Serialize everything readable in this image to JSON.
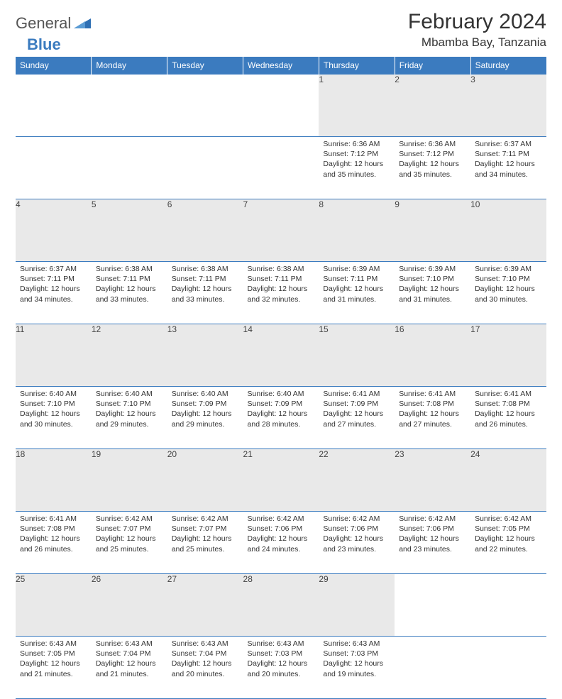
{
  "logo": {
    "part1": "General",
    "part2": "Blue"
  },
  "title": "February 2024",
  "location": "Mbamba Bay, Tanzania",
  "colors": {
    "header_bg": "#3b7bbf",
    "header_text": "#ffffff",
    "daynum_bg": "#e9e9e9",
    "border": "#3b7bbf",
    "body_text": "#333333"
  },
  "day_headers": [
    "Sunday",
    "Monday",
    "Tuesday",
    "Wednesday",
    "Thursday",
    "Friday",
    "Saturday"
  ],
  "weeks": [
    [
      null,
      null,
      null,
      null,
      {
        "n": "1",
        "sr": "6:36 AM",
        "ss": "7:12 PM",
        "dl": "12 hours and 35 minutes."
      },
      {
        "n": "2",
        "sr": "6:36 AM",
        "ss": "7:12 PM",
        "dl": "12 hours and 35 minutes."
      },
      {
        "n": "3",
        "sr": "6:37 AM",
        "ss": "7:11 PM",
        "dl": "12 hours and 34 minutes."
      }
    ],
    [
      {
        "n": "4",
        "sr": "6:37 AM",
        "ss": "7:11 PM",
        "dl": "12 hours and 34 minutes."
      },
      {
        "n": "5",
        "sr": "6:38 AM",
        "ss": "7:11 PM",
        "dl": "12 hours and 33 minutes."
      },
      {
        "n": "6",
        "sr": "6:38 AM",
        "ss": "7:11 PM",
        "dl": "12 hours and 33 minutes."
      },
      {
        "n": "7",
        "sr": "6:38 AM",
        "ss": "7:11 PM",
        "dl": "12 hours and 32 minutes."
      },
      {
        "n": "8",
        "sr": "6:39 AM",
        "ss": "7:11 PM",
        "dl": "12 hours and 31 minutes."
      },
      {
        "n": "9",
        "sr": "6:39 AM",
        "ss": "7:10 PM",
        "dl": "12 hours and 31 minutes."
      },
      {
        "n": "10",
        "sr": "6:39 AM",
        "ss": "7:10 PM",
        "dl": "12 hours and 30 minutes."
      }
    ],
    [
      {
        "n": "11",
        "sr": "6:40 AM",
        "ss": "7:10 PM",
        "dl": "12 hours and 30 minutes."
      },
      {
        "n": "12",
        "sr": "6:40 AM",
        "ss": "7:10 PM",
        "dl": "12 hours and 29 minutes."
      },
      {
        "n": "13",
        "sr": "6:40 AM",
        "ss": "7:09 PM",
        "dl": "12 hours and 29 minutes."
      },
      {
        "n": "14",
        "sr": "6:40 AM",
        "ss": "7:09 PM",
        "dl": "12 hours and 28 minutes."
      },
      {
        "n": "15",
        "sr": "6:41 AM",
        "ss": "7:09 PM",
        "dl": "12 hours and 27 minutes."
      },
      {
        "n": "16",
        "sr": "6:41 AM",
        "ss": "7:08 PM",
        "dl": "12 hours and 27 minutes."
      },
      {
        "n": "17",
        "sr": "6:41 AM",
        "ss": "7:08 PM",
        "dl": "12 hours and 26 minutes."
      }
    ],
    [
      {
        "n": "18",
        "sr": "6:41 AM",
        "ss": "7:08 PM",
        "dl": "12 hours and 26 minutes."
      },
      {
        "n": "19",
        "sr": "6:42 AM",
        "ss": "7:07 PM",
        "dl": "12 hours and 25 minutes."
      },
      {
        "n": "20",
        "sr": "6:42 AM",
        "ss": "7:07 PM",
        "dl": "12 hours and 25 minutes."
      },
      {
        "n": "21",
        "sr": "6:42 AM",
        "ss": "7:06 PM",
        "dl": "12 hours and 24 minutes."
      },
      {
        "n": "22",
        "sr": "6:42 AM",
        "ss": "7:06 PM",
        "dl": "12 hours and 23 minutes."
      },
      {
        "n": "23",
        "sr": "6:42 AM",
        "ss": "7:06 PM",
        "dl": "12 hours and 23 minutes."
      },
      {
        "n": "24",
        "sr": "6:42 AM",
        "ss": "7:05 PM",
        "dl": "12 hours and 22 minutes."
      }
    ],
    [
      {
        "n": "25",
        "sr": "6:43 AM",
        "ss": "7:05 PM",
        "dl": "12 hours and 21 minutes."
      },
      {
        "n": "26",
        "sr": "6:43 AM",
        "ss": "7:04 PM",
        "dl": "12 hours and 21 minutes."
      },
      {
        "n": "27",
        "sr": "6:43 AM",
        "ss": "7:04 PM",
        "dl": "12 hours and 20 minutes."
      },
      {
        "n": "28",
        "sr": "6:43 AM",
        "ss": "7:03 PM",
        "dl": "12 hours and 20 minutes."
      },
      {
        "n": "29",
        "sr": "6:43 AM",
        "ss": "7:03 PM",
        "dl": "12 hours and 19 minutes."
      },
      null,
      null
    ]
  ],
  "labels": {
    "sunrise": "Sunrise:",
    "sunset": "Sunset:",
    "daylight": "Daylight:"
  }
}
